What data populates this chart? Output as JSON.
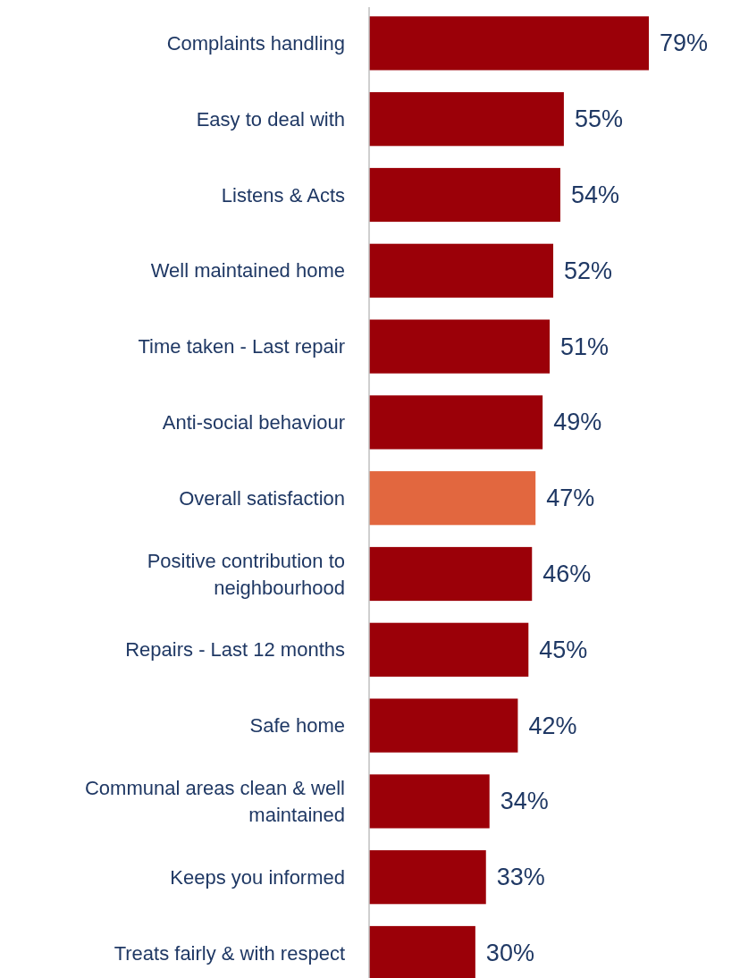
{
  "chart_data": {
    "type": "bar",
    "orientation": "horizontal",
    "categories": [
      "Complaints handling",
      "Easy to deal with",
      "Listens & Acts",
      "Well maintained home",
      "Time taken - Last repair",
      "Anti-social behaviour",
      "Overall satisfaction",
      "Positive contribution to neighbourhood",
      "Repairs - Last 12 months",
      "Safe home",
      "Communal areas clean & well maintained",
      "Keeps you informed",
      "Treats fairly & with respect"
    ],
    "values": [
      79,
      55,
      54,
      52,
      51,
      49,
      47,
      46,
      45,
      42,
      34,
      33,
      30
    ],
    "colors": [
      "#9b0008",
      "#9b0008",
      "#9b0008",
      "#9b0008",
      "#9b0008",
      "#9b0008",
      "#e2673f",
      "#9b0008",
      "#9b0008",
      "#9b0008",
      "#9b0008",
      "#9b0008",
      "#9b0008"
    ],
    "value_labels": [
      "79%",
      "55%",
      "54%",
      "52%",
      "51%",
      "49%",
      "47%",
      "46%",
      "45%",
      "42%",
      "34%",
      "33%",
      "30%"
    ]
  }
}
